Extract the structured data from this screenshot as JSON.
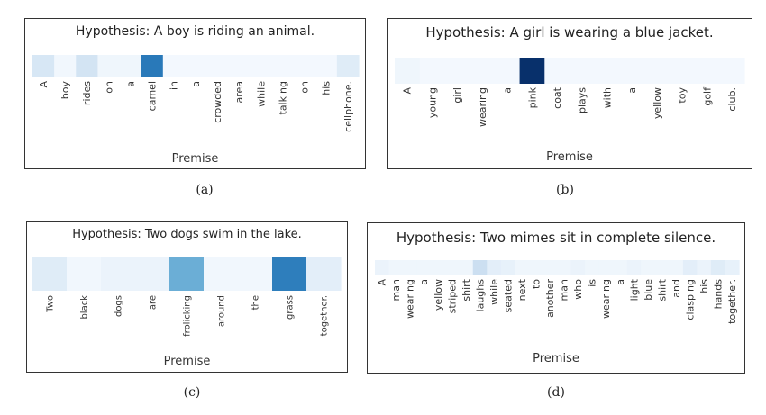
{
  "chart_data": [
    {
      "type": "heatmap",
      "title": "Hypothesis: A boy is riding an animal.",
      "xlabel": "Premise",
      "caption": "(a)",
      "categories": [
        "A",
        "boy",
        "rides",
        "on",
        "a",
        "camel",
        "in",
        "a",
        "crowded",
        "area",
        "while",
        "talking",
        "on",
        "his",
        "cellphone."
      ],
      "values": [
        0.16,
        0.03,
        0.18,
        0.04,
        0.04,
        0.72,
        0.02,
        0.02,
        0.02,
        0.02,
        0.02,
        0.02,
        0.02,
        0.02,
        0.12
      ]
    },
    {
      "type": "heatmap",
      "title": "Hypothesis: A girl is wearing a blue jacket.",
      "xlabel": "Premise",
      "caption": "(b)",
      "categories": [
        "A",
        "young",
        "girl",
        "wearing",
        "a",
        "pink",
        "coat",
        "plays",
        "with",
        "a",
        "yellow",
        "toy",
        "golf",
        "club."
      ],
      "values": [
        0.04,
        0.02,
        0.02,
        0.02,
        0.02,
        1.0,
        0.02,
        0.02,
        0.02,
        0.02,
        0.02,
        0.02,
        0.02,
        0.02
      ]
    },
    {
      "type": "heatmap",
      "title": "Hypothesis: Two dogs swim in the lake.",
      "xlabel": "Premise",
      "caption": "(c)",
      "categories": [
        "Two",
        "black",
        "dogs",
        "are",
        "frolicking",
        "around",
        "the",
        "grass",
        "together."
      ],
      "values": [
        0.12,
        0.03,
        0.06,
        0.06,
        0.5,
        0.03,
        0.03,
        0.7,
        0.1
      ]
    },
    {
      "type": "heatmap",
      "title": "Hypothesis: Two mimes sit in complete silence.",
      "xlabel": "Premise",
      "caption": "(d)",
      "categories": [
        "A",
        "man",
        "wearing",
        "a",
        "yellow",
        "striped",
        "shirt",
        "laughs",
        "while",
        "seated",
        "next",
        "to",
        "another",
        "man",
        "who",
        "is",
        "wearing",
        "a",
        "light",
        "blue",
        "shirt",
        "and",
        "clasping",
        "his",
        "hands",
        "together."
      ],
      "values": [
        0.06,
        0.04,
        0.04,
        0.04,
        0.04,
        0.04,
        0.04,
        0.22,
        0.1,
        0.08,
        0.04,
        0.04,
        0.04,
        0.04,
        0.06,
        0.04,
        0.04,
        0.04,
        0.06,
        0.04,
        0.04,
        0.04,
        0.1,
        0.06,
        0.12,
        0.08
      ]
    }
  ]
}
